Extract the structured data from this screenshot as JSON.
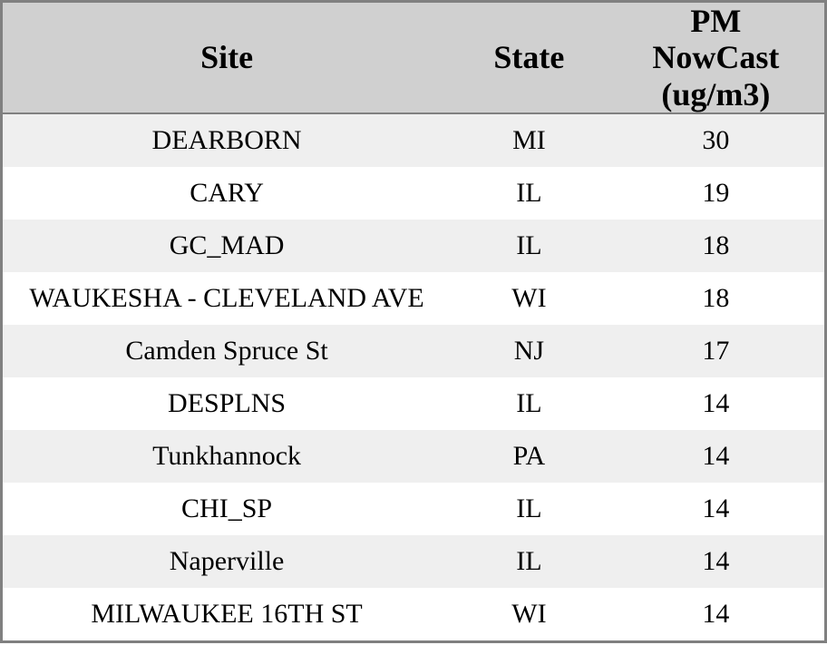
{
  "chart_data": {
    "type": "table",
    "title": "",
    "columns": [
      "Site",
      "State",
      "PM NowCast (ug/m3)"
    ],
    "rows": [
      [
        "DEARBORN",
        "MI",
        30
      ],
      [
        "CARY",
        "IL",
        19
      ],
      [
        "GC_MAD",
        "IL",
        18
      ],
      [
        "WAUKESHA - CLEVELAND AVE",
        "WI",
        18
      ],
      [
        "Camden Spruce St",
        "NJ",
        17
      ],
      [
        "DESPLNS",
        "IL",
        14
      ],
      [
        "Tunkhannock",
        "PA",
        14
      ],
      [
        "CHI_SP",
        "IL",
        14
      ],
      [
        "Naperville",
        "IL",
        14
      ],
      [
        "MILWAUKEE 16TH ST",
        "WI",
        14
      ]
    ],
    "layout": {
      "striped": true,
      "stripe_pattern": "odd-rows-shaded",
      "grid": false
    }
  },
  "colors": {
    "header_bg": "#d0d0d0",
    "row_alt_bg": "#efefef",
    "row_bg": "#ffffff",
    "border": "#808080",
    "text": "#000000"
  }
}
